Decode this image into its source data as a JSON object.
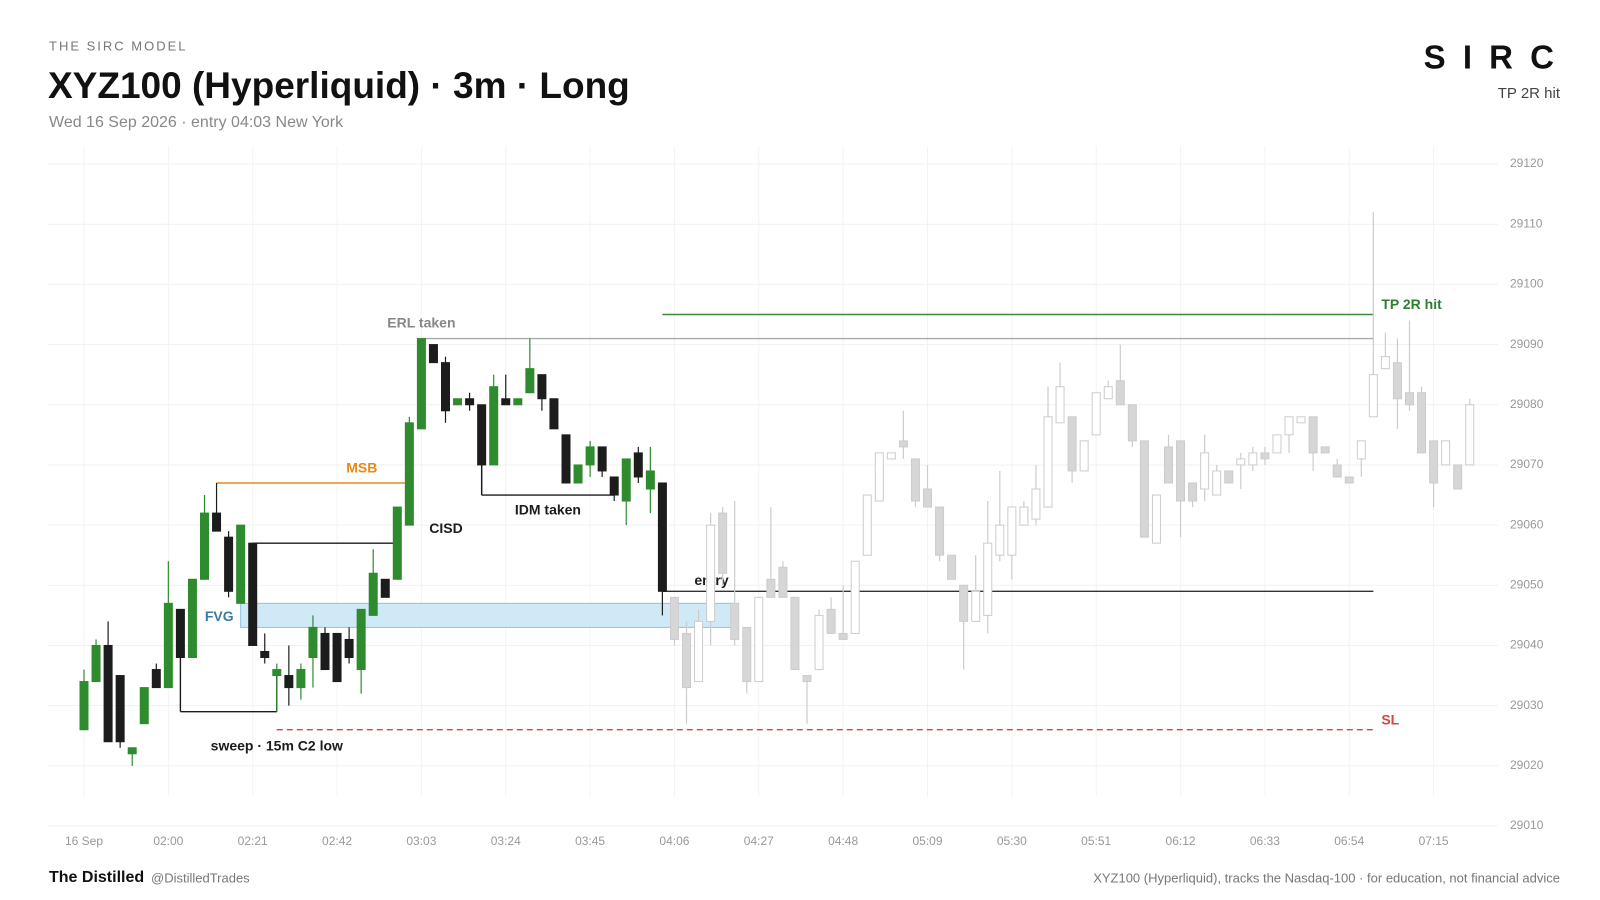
{
  "header": {
    "kicker": "THE SIRC MODEL",
    "title": "XYZ100 (Hyperliquid) · 3m · Long",
    "subtitle": "Wed 16 Sep 2026 · entry 04:03 New York",
    "brand": "S I R C",
    "status": "TP 2R hit"
  },
  "footer": {
    "brand": "The Distilled",
    "handle": "@DistilledTrades",
    "note": "XYZ100 (Hyperliquid), tracks the Nasdaq-100 · for education, not financial advice"
  },
  "chart_data": {
    "type": "candlestick",
    "categories": [
      "16 Sep",
      null,
      null,
      null,
      null,
      null,
      null,
      "02:00",
      null,
      null,
      null,
      null,
      null,
      null,
      "02:21",
      null,
      null,
      null,
      null,
      null,
      null,
      "02:42",
      null,
      null,
      null,
      null,
      null,
      null,
      "03:03",
      null,
      null,
      null,
      null,
      null,
      null,
      "03:24",
      null,
      null,
      null,
      null,
      null,
      null,
      "03:45",
      null,
      null,
      null,
      null,
      null,
      null,
      "04:06",
      null,
      null,
      null,
      null,
      null,
      null,
      "04:27",
      null,
      null,
      null,
      null,
      null,
      null,
      "04:48",
      null,
      null,
      null,
      null,
      null,
      null,
      "05:09",
      null,
      null,
      null,
      null,
      null,
      null,
      "05:30",
      null,
      null,
      null,
      null,
      null,
      null,
      "05:51",
      null,
      null,
      null,
      null,
      null,
      null,
      "06:12",
      null,
      null,
      null,
      null,
      null,
      null,
      "06:33",
      null,
      null,
      null,
      null,
      null,
      null,
      "06:54",
      null,
      null,
      null,
      null,
      null,
      null,
      "07:15",
      null,
      null,
      null
    ],
    "open": [
      29026,
      29034,
      29040,
      29035,
      29022,
      29027,
      29036,
      29033,
      29046,
      29038,
      29051,
      29062,
      29058,
      29047,
      29057,
      29039,
      29035,
      29035,
      29033,
      29038,
      29042,
      29042,
      29041,
      29036,
      29045,
      29051,
      29051,
      29060,
      29076,
      29090,
      29087,
      29080,
      29081,
      29080,
      29070,
      29081,
      29080,
      29082,
      29085,
      29081,
      29075,
      29067,
      29070,
      29073,
      29068,
      29064,
      29072,
      29066,
      29067,
      29048,
      29042,
      29034,
      29044,
      29062,
      29047,
      29043,
      29034,
      29051,
      29053,
      29048,
      29035,
      29036,
      29046,
      29042,
      29042,
      29055,
      29064,
      29071,
      29074,
      29071,
      29066,
      29063,
      29055,
      29050,
      29044,
      29045,
      29055,
      29055,
      29060,
      29061,
      29063,
      29077,
      29078,
      29069,
      29075,
      29081,
      29084,
      29080,
      29074,
      29057,
      29073,
      29074,
      29067,
      29066,
      29065,
      29069,
      29070,
      29070,
      29072,
      29072,
      29075,
      29077,
      29078,
      29073,
      29070,
      29068,
      29071,
      29078,
      29086,
      29087,
      29082,
      29082,
      29074,
      29070,
      29070,
      29070
    ],
    "high": [
      29036,
      29041,
      29044,
      29035,
      29023,
      29033,
      29037,
      29054,
      29046,
      29051,
      29065,
      29067,
      29059,
      29060,
      29057,
      29042,
      29037,
      29040,
      29037,
      29045,
      29043,
      29042,
      29043,
      29046,
      29056,
      29051,
      29063,
      29078,
      29091,
      29090,
      29088,
      29081,
      29082,
      29080,
      29085,
      29085,
      29081,
      29091,
      29085,
      29081,
      29075,
      29070,
      29074,
      29073,
      29068,
      29071,
      29073,
      29073,
      29067,
      29048,
      29044,
      29046,
      29062,
      29063,
      29064,
      29043,
      29048,
      29063,
      29054,
      29048,
      29035,
      29046,
      29048,
      29050,
      29054,
      29065,
      29072,
      29072,
      29079,
      29071,
      29070,
      29063,
      29055,
      29050,
      29055,
      29064,
      29069,
      29063,
      29064,
      29070,
      29083,
      29087,
      29078,
      29074,
      29082,
      29084,
      29090,
      29080,
      29074,
      29065,
      29075,
      29074,
      29067,
      29075,
      29070,
      29069,
      29072,
      29073,
      29073,
      29075,
      29078,
      29078,
      29078,
      29073,
      29071,
      29068,
      29074,
      29112,
      29092,
      29091,
      29094,
      29083,
      29074,
      29074,
      29070,
      29081
    ],
    "low": [
      29026,
      29034,
      29024,
      29023,
      29020,
      29027,
      29033,
      29033,
      29038,
      29038,
      29051,
      29059,
      29048,
      29047,
      29040,
      29037,
      29029,
      29030,
      29031,
      29033,
      29036,
      29034,
      29037,
      29032,
      29045,
      29048,
      29051,
      29060,
      29076,
      29087,
      29077,
      29080,
      29079,
      29065,
      29070,
      29080,
      29080,
      29082,
      29079,
      29076,
      29067,
      29067,
      29068,
      29068,
      29064,
      29060,
      29067,
      29062,
      29045,
      29040,
      29027,
      29034,
      29040,
      29050,
      29040,
      29032,
      29034,
      29048,
      29048,
      29036,
      29027,
      29036,
      29042,
      29041,
      29042,
      29055,
      29064,
      29071,
      29071,
      29063,
      29063,
      29054,
      29051,
      29036,
      29044,
      29042,
      29054,
      29051,
      29060,
      29060,
      29063,
      29077,
      29067,
      29069,
      29075,
      29081,
      29080,
      29073,
      29058,
      29057,
      29067,
      29058,
      29063,
      29064,
      29065,
      29067,
      29066,
      29069,
      29070,
      29072,
      29072,
      29077,
      29069,
      29072,
      29068,
      29067,
      29068,
      29078,
      29086,
      29076,
      29079,
      29072,
      29063,
      29070,
      29066,
      29070
    ],
    "close": [
      29034,
      29040,
      29024,
      29024,
      29023,
      29033,
      29033,
      29047,
      29038,
      29051,
      29062,
      29059,
      29049,
      29060,
      29040,
      29038,
      29036,
      29033,
      29036,
      29043,
      29036,
      29034,
      29038,
      29046,
      29052,
      29048,
      29063,
      29077,
      29091,
      29087,
      29079,
      29081,
      29080,
      29070,
      29083,
      29080,
      29081,
      29086,
      29081,
      29076,
      29067,
      29070,
      29073,
      29069,
      29065,
      29071,
      29068,
      29069,
      29049,
      29041,
      29033,
      29044,
      29060,
      29052,
      29041,
      29034,
      29048,
      29048,
      29048,
      29036,
      29034,
      29045,
      29042,
      29041,
      29054,
      29065,
      29072,
      29072,
      29073,
      29064,
      29063,
      29055,
      29051,
      29044,
      29049,
      29057,
      29060,
      29063,
      29063,
      29066,
      29078,
      29083,
      29069,
      29074,
      29082,
      29083,
      29080,
      29074,
      29058,
      29065,
      29067,
      29064,
      29064,
      29072,
      29069,
      29067,
      29071,
      29072,
      29071,
      29075,
      29078,
      29078,
      29072,
      29072,
      29068,
      29067,
      29074,
      29085,
      29088,
      29081,
      29080,
      29072,
      29067,
      29074,
      29066,
      29080
    ],
    "up_color": "#2e8b2e",
    "down_color": "#1c1c1c",
    "faded_from": 49,
    "faded_up_color": "#ffffff",
    "faded_down_color": "#d6d6d6",
    "faded_edge_color": "#cccccc",
    "ylim": [
      29010,
      29123
    ],
    "yticks": [
      29010,
      29020,
      29030,
      29040,
      29050,
      29060,
      29070,
      29080,
      29090,
      29100,
      29110,
      29120
    ],
    "grid": true,
    "zone": {
      "label": "FVG",
      "low": 29043,
      "high": 29047,
      "start": 13,
      "end": 54,
      "color": "#cfe9f6",
      "edge": "#8cc4e0",
      "text_color": "#3a7ca5"
    },
    "levels": [
      {
        "label": "ERL taken",
        "value": 29091,
        "start": 28,
        "end": 107,
        "color": "#aaaaaa",
        "text_color": "#888888"
      },
      {
        "label": "MSB",
        "value": 29067,
        "start": 11,
        "end": 27,
        "color": "#e8891b",
        "text_color": "#e8891b"
      },
      {
        "label": "CISD",
        "value": 29057,
        "start": 14,
        "end": 26,
        "color": "#1c1c1c",
        "text_color": "#1c1c1c"
      },
      {
        "label": "IDM taken",
        "value": 29065,
        "start": 33,
        "end": 44,
        "color": "#1c1c1c",
        "text_color": "#1c1c1c"
      },
      {
        "label": "entry",
        "value": 29049,
        "start": 48,
        "end": 107,
        "color": "#333333",
        "text_color": "#1c1c1c"
      },
      {
        "label": "TP 2R hit",
        "value": 29095,
        "start": 48,
        "end": 107,
        "color": "#3a8a3a",
        "text_color": "#2e7d32"
      },
      {
        "label": "SL",
        "value": 29026,
        "start": 16,
        "end": 107,
        "color": "#d64545",
        "text_color": "#d64545",
        "dashed": true
      },
      {
        "label": "sweep · 15m C2 low",
        "value": 29029,
        "start": 8,
        "end": 16,
        "color": "#1c1c1c",
        "text_color": "#1c1c1c"
      }
    ]
  }
}
